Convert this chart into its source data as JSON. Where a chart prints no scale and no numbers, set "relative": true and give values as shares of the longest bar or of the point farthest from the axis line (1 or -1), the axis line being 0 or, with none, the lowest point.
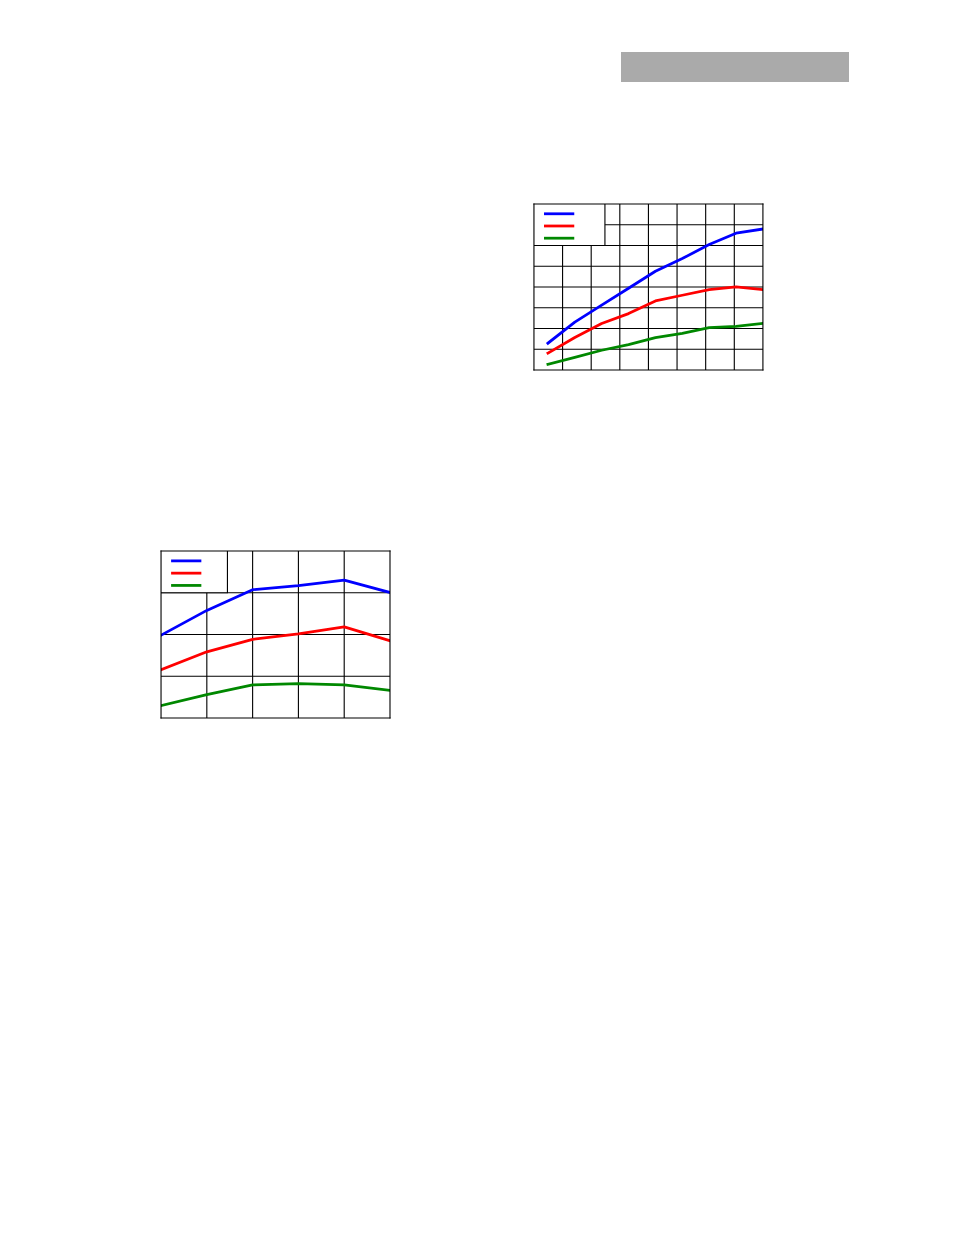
{
  "chart_data": [
    {
      "type": "line",
      "relative": true,
      "categories": [
        null,
        null,
        null,
        null,
        null,
        null,
        null,
        null,
        null
      ],
      "grid": true,
      "series": [
        {
          "color": "#0000ff",
          "values": [
            0.19,
            0.34,
            0.46,
            0.58,
            0.7,
            0.79,
            0.89,
            0.97,
            1
          ]
        },
        {
          "color": "#ff0000",
          "values": [
            0.12,
            0.23,
            0.33,
            0.4,
            0.49,
            0.53,
            0.57,
            0.59,
            0.57
          ]
        },
        {
          "color": "#008800",
          "values": [
            0.04,
            0.09,
            0.14,
            0.18,
            0.23,
            0.26,
            0.3,
            0.31,
            0.33
          ]
        }
      ]
    },
    {
      "type": "line",
      "relative": true,
      "categories": [
        null,
        null,
        null,
        null,
        null,
        null
      ],
      "grid": true,
      "series": [
        {
          "color": "#0000ff",
          "values": [
            0.6,
            0.78,
            0.93,
            0.96,
            1,
            0.91
          ]
        },
        {
          "color": "#ff0000",
          "values": [
            0.35,
            0.48,
            0.57,
            0.61,
            0.66,
            0.56
          ]
        },
        {
          "color": "#008800",
          "values": [
            0.09,
            0.17,
            0.24,
            0.25,
            0.24,
            0.2
          ]
        }
      ]
    }
  ]
}
